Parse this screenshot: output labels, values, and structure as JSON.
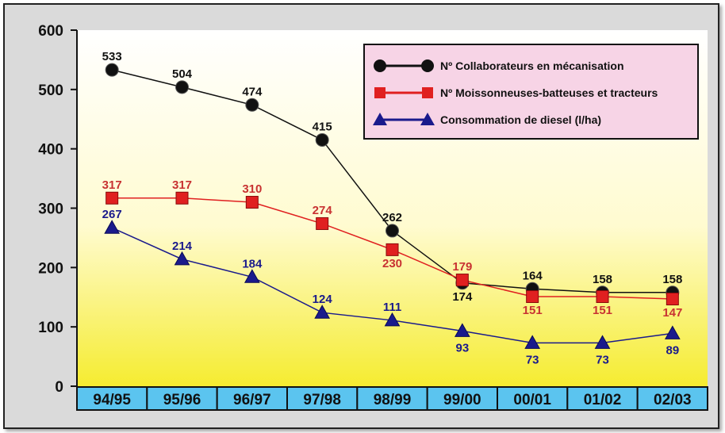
{
  "colors": {
    "series_black": "#111111",
    "series_red": "#e02020",
    "series_blue": "#1a1a8c",
    "label_red": "#c83232",
    "label_blue": "#1a1a8c",
    "legend_bg": "#f7d4e6",
    "xband": "#5bc4ef"
  },
  "chart_data": {
    "type": "line",
    "title": "",
    "xlabel": "",
    "ylabel": "",
    "ylim": [
      0,
      600
    ],
    "yticks": [
      0,
      100,
      200,
      300,
      400,
      500,
      600
    ],
    "categories": [
      "94/95",
      "95/96",
      "96/97",
      "97/98",
      "98/99",
      "99/00",
      "00/01",
      "01/02",
      "02/03"
    ],
    "grid": false,
    "legend_position": "top-right",
    "series": [
      {
        "name": "Nº Collaborateurs en mécanisation",
        "marker": "circle",
        "color": "#111111",
        "values": [
          533,
          504,
          474,
          415,
          262,
          174,
          164,
          158,
          158
        ]
      },
      {
        "name": "Nº Moissonneuses-batteuses et tracteurs",
        "marker": "square",
        "color": "#e02020",
        "values": [
          317,
          317,
          310,
          274,
          230,
          179,
          151,
          151,
          147
        ]
      },
      {
        "name": "Consommation de diesel (l/ha)",
        "marker": "triangle",
        "color": "#1a1a8c",
        "values": [
          267,
          214,
          184,
          124,
          111,
          93,
          73,
          73,
          89
        ]
      }
    ]
  }
}
